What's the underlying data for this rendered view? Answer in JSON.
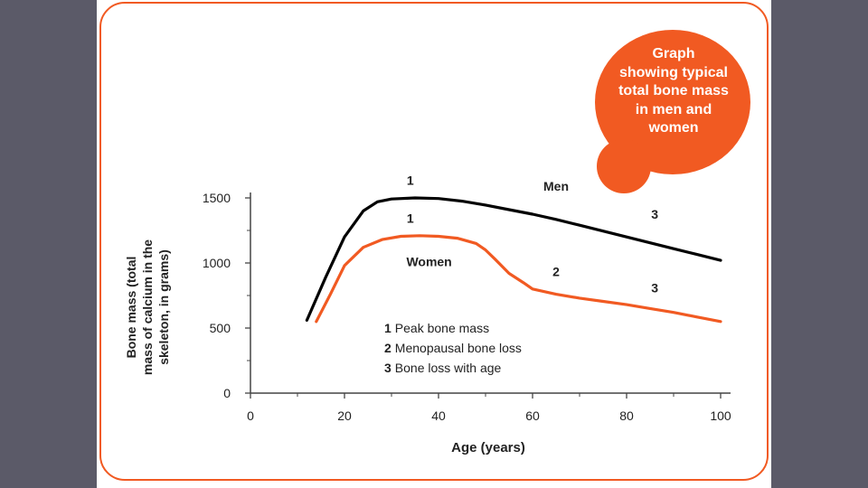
{
  "callout": {
    "text_lines": [
      "Graph",
      "showing typical",
      "total bone mass",
      "in men and",
      "women"
    ],
    "color": "#f15a22"
  },
  "colors": {
    "background": "#5b5a68",
    "border": "#f15a22",
    "men_line": "#000000",
    "women_line": "#f15a22"
  },
  "chart_data": {
    "type": "line",
    "xlabel": "Age (years)",
    "ylabel_lines": [
      "Bone mass (total",
      "mass of calcium in the",
      "skeleton, in grams)"
    ],
    "xlim": [
      0,
      100
    ],
    "ylim": [
      0,
      1500
    ],
    "xticks": [
      0,
      20,
      40,
      60,
      80,
      100
    ],
    "yticks": [
      0,
      500,
      1000,
      1500
    ],
    "series": [
      {
        "name": "Men",
        "x": [
          12,
          16,
          20,
          24,
          27,
          30,
          35,
          40,
          45,
          50,
          55,
          60,
          65,
          70,
          75,
          80,
          85,
          90,
          95,
          100
        ],
        "values": [
          560,
          890,
          1200,
          1400,
          1470,
          1492,
          1500,
          1495,
          1475,
          1445,
          1410,
          1375,
          1335,
          1290,
          1245,
          1200,
          1155,
          1110,
          1065,
          1020
        ]
      },
      {
        "name": "Women",
        "x": [
          14,
          17,
          20,
          24,
          28,
          32,
          36,
          40,
          44,
          48,
          50,
          52,
          55,
          58,
          60,
          65,
          70,
          75,
          80,
          85,
          90,
          95,
          100
        ],
        "values": [
          550,
          760,
          980,
          1120,
          1180,
          1205,
          1210,
          1205,
          1190,
          1150,
          1100,
          1030,
          920,
          850,
          800,
          760,
          730,
          705,
          680,
          650,
          620,
          585,
          550
        ]
      }
    ],
    "annotations": [
      {
        "text": "1",
        "x": 34,
        "y": 1600
      },
      {
        "text": "1",
        "x": 34,
        "y": 1310
      },
      {
        "text": "Men",
        "x": 65,
        "y": 1555
      },
      {
        "text": "Women",
        "x": 38,
        "y": 975
      },
      {
        "text": "2",
        "x": 65,
        "y": 900
      },
      {
        "text": "3",
        "x": 86,
        "y": 1340
      },
      {
        "text": "3",
        "x": 86,
        "y": 775
      }
    ],
    "legend": [
      {
        "num": "1",
        "text": "Peak bone mass"
      },
      {
        "num": "2",
        "text": "Menopausal bone loss"
      },
      {
        "num": "3",
        "text": "Bone loss with age"
      }
    ]
  }
}
